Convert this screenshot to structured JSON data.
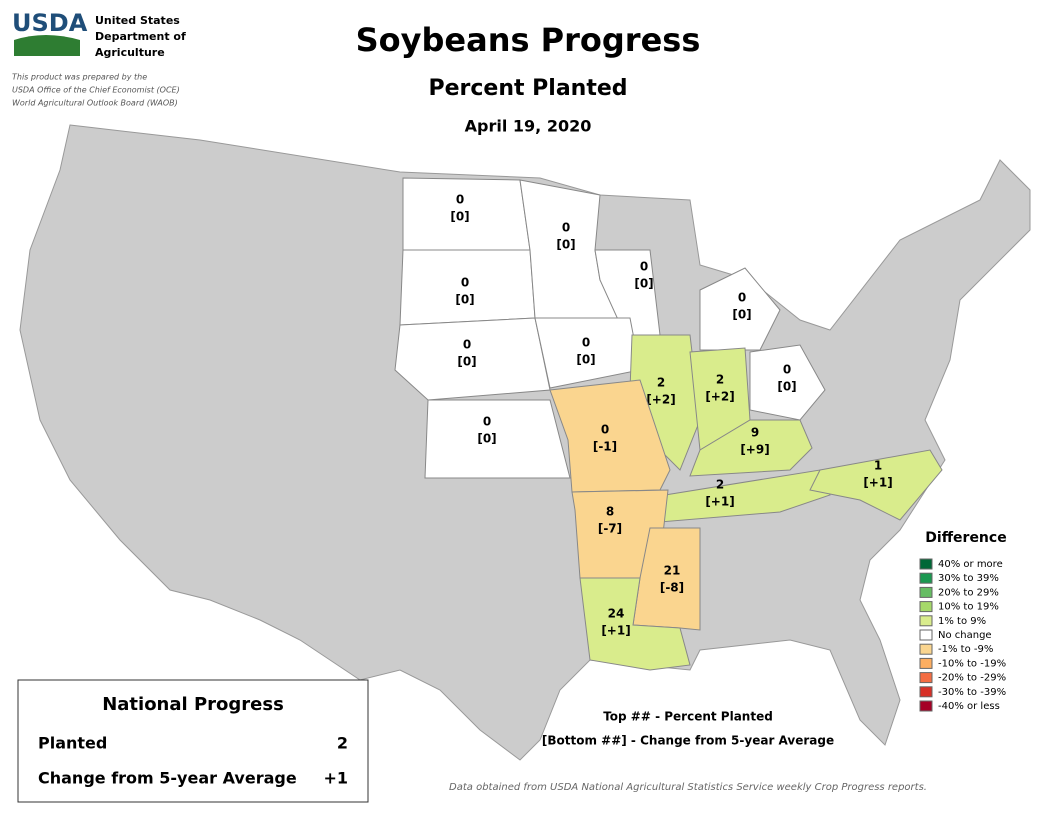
{
  "header": {
    "logo": "USDA",
    "agency": [
      "United States",
      "Department of",
      "Agriculture"
    ],
    "note": [
      "This product was prepared by the",
      "USDA Office of the Chief Economist (OCE)",
      "World Agricultural Outlook Board (WAOB)"
    ],
    "title": "Soybeans Progress",
    "subtitle": "Percent Planted",
    "date": "April 19, 2020"
  },
  "states": [
    {
      "top": "0",
      "bottom": "[0]",
      "color": "#ffffff"
    },
    {
      "top": "0",
      "bottom": "[0]",
      "color": "#ffffff"
    },
    {
      "top": "0",
      "bottom": "[0]",
      "color": "#ffffff"
    },
    {
      "top": "0",
      "bottom": "[0]",
      "color": "#ffffff"
    },
    {
      "top": "0",
      "bottom": "[0]",
      "color": "#ffffff"
    },
    {
      "top": "0",
      "bottom": "[0]",
      "color": "#ffffff"
    },
    {
      "top": "0",
      "bottom": "[0]",
      "color": "#ffffff"
    },
    {
      "top": "2",
      "bottom": "[+2]",
      "color": "#d9ec8c"
    },
    {
      "top": "2",
      "bottom": "[+2]",
      "color": "#d9ec8c"
    },
    {
      "top": "0",
      "bottom": "[0]",
      "color": "#ffffff"
    },
    {
      "top": "0",
      "bottom": "[0]",
      "color": "#ffffff"
    },
    {
      "top": "0",
      "bottom": "[-1]",
      "color": "#fad58f"
    },
    {
      "top": "9",
      "bottom": "[+9]",
      "color": "#d9ec8c"
    },
    {
      "top": "2",
      "bottom": "[+1]",
      "color": "#d9ec8c"
    },
    {
      "top": "1",
      "bottom": "[+1]",
      "color": "#d9ec8c"
    },
    {
      "top": "8",
      "bottom": "[-7]",
      "color": "#fad58f"
    },
    {
      "top": "21",
      "bottom": "[-8]",
      "color": "#fad58f"
    },
    {
      "top": "24",
      "bottom": "[+1]",
      "color": "#d9ec8c"
    }
  ],
  "legend": {
    "title": "Difference",
    "items": [
      {
        "label": "40% or more",
        "color": "#006837"
      },
      {
        "label": "30% to 39%",
        "color": "#1a9850"
      },
      {
        "label": "20% to 29%",
        "color": "#66bd63"
      },
      {
        "label": "10% to 19%",
        "color": "#a6d96a"
      },
      {
        "label": "1% to 9%",
        "color": "#d9ec8c"
      },
      {
        "label": "No change",
        "color": "#ffffff"
      },
      {
        "label": "-1% to -9%",
        "color": "#fad58f"
      },
      {
        "label": "-10% to -19%",
        "color": "#fdae61"
      },
      {
        "label": "-20% to -29%",
        "color": "#f46d43"
      },
      {
        "label": "-30% to -39%",
        "color": "#d73027"
      },
      {
        "label": "-40% or less",
        "color": "#a50026"
      }
    ]
  },
  "key": [
    "Top ## - Percent Planted",
    "[Bottom ##] - Change from 5-year Average"
  ],
  "national": {
    "title": "National Progress",
    "rows": [
      [
        "Planted",
        "2"
      ],
      [
        "Change from 5-year Average",
        "+1"
      ]
    ]
  },
  "source": "Data obtained from USDA National Agricultural Statistics Service weekly Crop Progress reports."
}
